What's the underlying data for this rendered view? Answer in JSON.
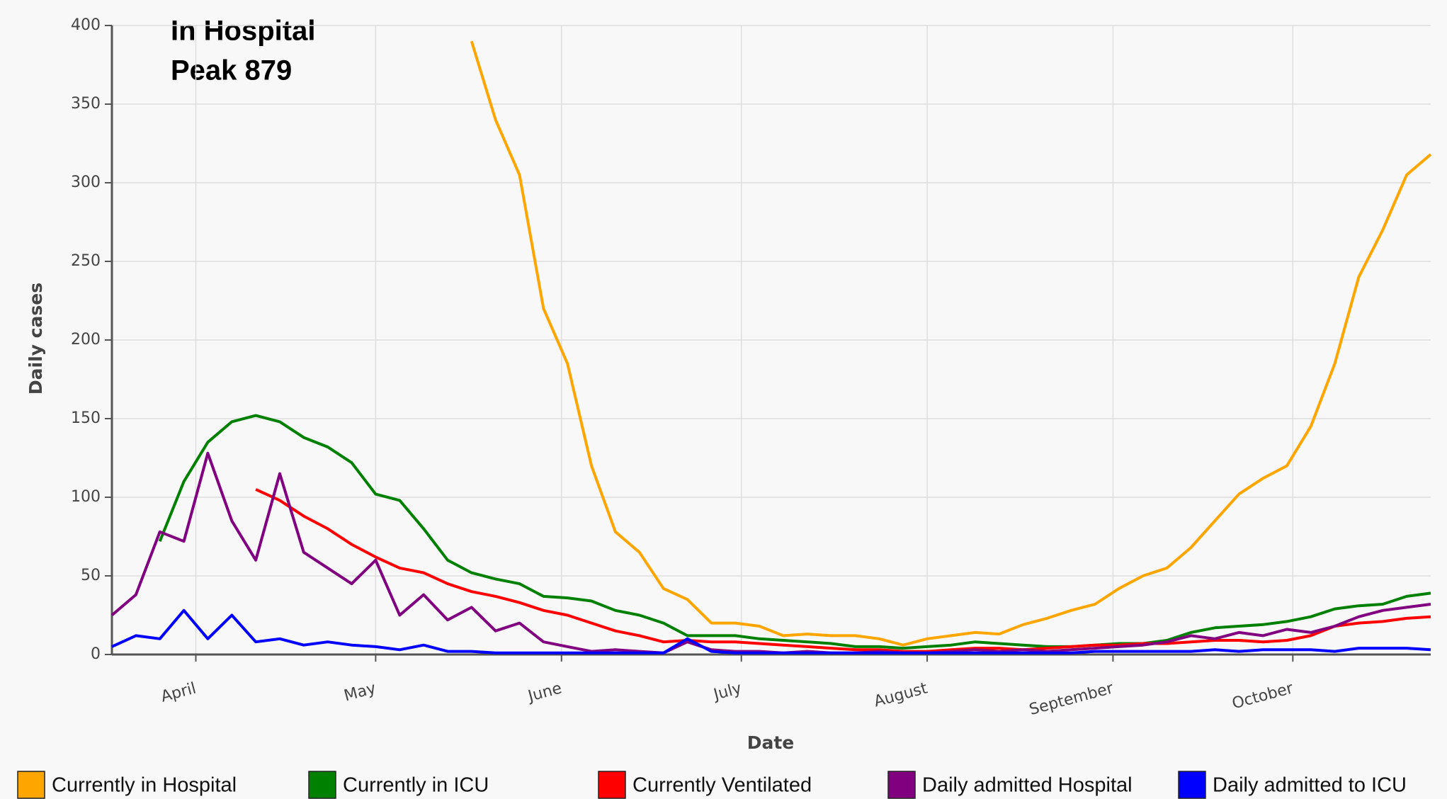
{
  "chart_data": {
    "type": "line",
    "annotations": [
      "In Hospital",
      "Peak 879"
    ],
    "xlabel": "Date",
    "ylabel": "Daily cases",
    "x": [
      0,
      4,
      8,
      12,
      16,
      20,
      24,
      28,
      32,
      36,
      40,
      44,
      48,
      52,
      56,
      60,
      64,
      68,
      72,
      76,
      80,
      84,
      88,
      92,
      96,
      100,
      104,
      108,
      112,
      116,
      120,
      124,
      128,
      132,
      136,
      140,
      144,
      148,
      152,
      156,
      160,
      164,
      168,
      172,
      176,
      180,
      184,
      188,
      192,
      196,
      200,
      204,
      208,
      212,
      216,
      220
    ],
    "xlim": [
      0,
      220
    ],
    "xticks": [
      {
        "value": 14,
        "label": "April"
      },
      {
        "value": 44,
        "label": "May"
      },
      {
        "value": 75,
        "label": "June"
      },
      {
        "value": 105,
        "label": "July"
      },
      {
        "value": 136,
        "label": "August"
      },
      {
        "value": 167,
        "label": "September"
      },
      {
        "value": 197,
        "label": "October"
      }
    ],
    "ylim": [
      0,
      400
    ],
    "yticks": [
      0,
      50,
      100,
      150,
      200,
      250,
      300,
      350,
      400
    ],
    "grid": true,
    "legend": "bottom",
    "series": [
      {
        "name": "Currently in Hospital",
        "color": "#ffa500",
        "values": [
          null,
          null,
          null,
          null,
          null,
          null,
          null,
          null,
          null,
          null,
          null,
          null,
          null,
          null,
          null,
          390,
          340,
          305,
          220,
          185,
          120,
          78,
          65,
          42,
          35,
          20,
          20,
          18,
          12,
          13,
          12,
          12,
          10,
          6,
          10,
          12,
          14,
          13,
          19,
          23,
          28,
          32,
          42,
          50,
          55,
          68,
          85,
          102,
          112,
          120,
          145,
          185,
          240,
          270,
          305,
          318
        ]
      },
      {
        "name": "Currently in ICU",
        "color": "#008000",
        "values": [
          null,
          null,
          72,
          110,
          135,
          148,
          152,
          148,
          138,
          132,
          122,
          102,
          98,
          80,
          60,
          52,
          48,
          45,
          37,
          36,
          34,
          28,
          25,
          20,
          12,
          12,
          12,
          10,
          9,
          8,
          7,
          5,
          5,
          4,
          5,
          6,
          8,
          7,
          6,
          5,
          5,
          6,
          7,
          7,
          9,
          14,
          17,
          18,
          19,
          21,
          24,
          29,
          31,
          32,
          37,
          39
        ]
      },
      {
        "name": "Currently Ventilated",
        "color": "#ff0000",
        "values": [
          null,
          null,
          null,
          null,
          null,
          null,
          105,
          98,
          88,
          80,
          70,
          62,
          55,
          52,
          45,
          40,
          37,
          33,
          28,
          25,
          20,
          15,
          12,
          8,
          9,
          8,
          8,
          7,
          6,
          5,
          4,
          3,
          3,
          2,
          2,
          3,
          4,
          4,
          3,
          4,
          5,
          6,
          6,
          7,
          7,
          8,
          9,
          9,
          8,
          9,
          12,
          18,
          20,
          21,
          23,
          24
        ]
      },
      {
        "name": "Daily admitted Hospital",
        "color": "#800080",
        "values": [
          25,
          38,
          78,
          72,
          128,
          85,
          60,
          115,
          65,
          55,
          45,
          60,
          25,
          38,
          22,
          30,
          15,
          20,
          8,
          5,
          2,
          3,
          2,
          1,
          8,
          3,
          2,
          2,
          1,
          2,
          1,
          1,
          2,
          1,
          1,
          2,
          3,
          2,
          3,
          2,
          3,
          4,
          5,
          6,
          8,
          12,
          10,
          14,
          12,
          16,
          14,
          18,
          24,
          28,
          30,
          32
        ]
      },
      {
        "name": "Daily admitted to ICU",
        "color": "#0000ff",
        "values": [
          5,
          12,
          10,
          28,
          10,
          25,
          8,
          10,
          6,
          8,
          6,
          5,
          3,
          6,
          2,
          2,
          1,
          1,
          1,
          1,
          1,
          1,
          1,
          1,
          10,
          2,
          1,
          1,
          1,
          1,
          1,
          1,
          1,
          1,
          1,
          1,
          1,
          1,
          1,
          1,
          1,
          2,
          2,
          2,
          2,
          2,
          3,
          2,
          3,
          3,
          3,
          2,
          4,
          4,
          4,
          3
        ]
      }
    ]
  }
}
